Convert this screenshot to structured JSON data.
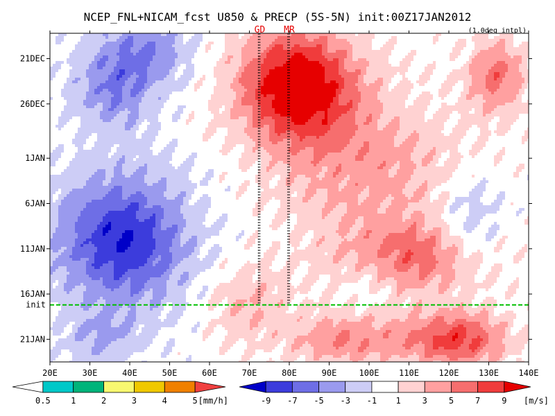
{
  "chart_data": {
    "type": "heatmap",
    "title": "NCEP_FNL+NICAM_fcst U850 & PRECP (5S-5N) init:00Z17JAN2012",
    "interp_note": "(1.0deg intpl)",
    "x_ticks": [
      "20E",
      "30E",
      "40E",
      "50E",
      "60E",
      "70E",
      "80E",
      "90E",
      "100E",
      "110E",
      "120E",
      "130E",
      "140E"
    ],
    "x_range": [
      20,
      140
    ],
    "y_ticks": [
      {
        "label": "21DEC",
        "day": 0
      },
      {
        "label": "26DEC",
        "day": 5
      },
      {
        "label": "1JAN",
        "day": 11
      },
      {
        "label": "6JAN",
        "day": 16
      },
      {
        "label": "11JAN",
        "day": 21
      },
      {
        "label": "16JAN",
        "day": 26
      },
      {
        "label": "21JAN",
        "day": 31
      }
    ],
    "y_range_days": [
      -2.8,
      33.5
    ],
    "init_label": "init",
    "init_day": 27.2,
    "markers": [
      {
        "label": "GD",
        "lon": 72.6
      },
      {
        "label": "MR",
        "lon": 80.0
      }
    ],
    "u850_fields": [
      {
        "lon": 38,
        "day": 20,
        "sx": 16,
        "sy": 7,
        "amp": -9
      },
      {
        "lon": 36,
        "day": 3,
        "sx": 10,
        "sy": 5,
        "amp": -5
      },
      {
        "lon": 45,
        "day": -1,
        "sx": 10,
        "sy": 4,
        "amp": -4
      },
      {
        "lon": 33,
        "day": 31,
        "sx": 9,
        "sy": 3,
        "amp": -3
      },
      {
        "lon": 100,
        "day": 24,
        "sx": 8,
        "sy": 4,
        "amp": -2
      },
      {
        "lon": 82,
        "day": 3,
        "sx": 14,
        "sy": 6,
        "amp": 12
      },
      {
        "lon": 100,
        "day": 12,
        "sx": 22,
        "sy": 8,
        "amp": 4
      },
      {
        "lon": 110,
        "day": 22,
        "sx": 18,
        "sy": 4,
        "amp": 6
      },
      {
        "lon": 122,
        "day": 31,
        "sx": 12,
        "sy": 3,
        "amp": 8
      },
      {
        "lon": 95,
        "day": 31,
        "sx": 15,
        "sy": 3,
        "amp": 5
      },
      {
        "lon": 132,
        "day": 2,
        "sx": 7,
        "sy": 4,
        "amp": 6
      },
      {
        "lon": 70,
        "day": 27,
        "sx": 10,
        "sy": 4,
        "amp": 3
      },
      {
        "lon": 125,
        "day": 18,
        "sx": 8,
        "sy": 5,
        "amp": -3
      }
    ],
    "u850_legend": {
      "colors": [
        "#0000c8",
        "#3c3cdc",
        "#6e6ee6",
        "#9a9aee",
        "#cdcdf6",
        "#ffffff",
        "#ffd2d2",
        "#ffa0a0",
        "#f66e6e",
        "#f03c3c",
        "#e60000"
      ],
      "labels": [
        "-9",
        "-7",
        "-5",
        "-3",
        "-1",
        "1",
        "3",
        "5",
        "7",
        "9"
      ],
      "unit": "[m/s]"
    },
    "precip_legend": {
      "colors": [
        "#ffffff",
        "#00c8c8",
        "#00b47a",
        "#f8f870",
        "#f0c800",
        "#f08000",
        "#f04040"
      ],
      "labels": [
        "0.5",
        "1",
        "2",
        "3",
        "4",
        "5"
      ],
      "unit": "[mm/h]"
    }
  }
}
